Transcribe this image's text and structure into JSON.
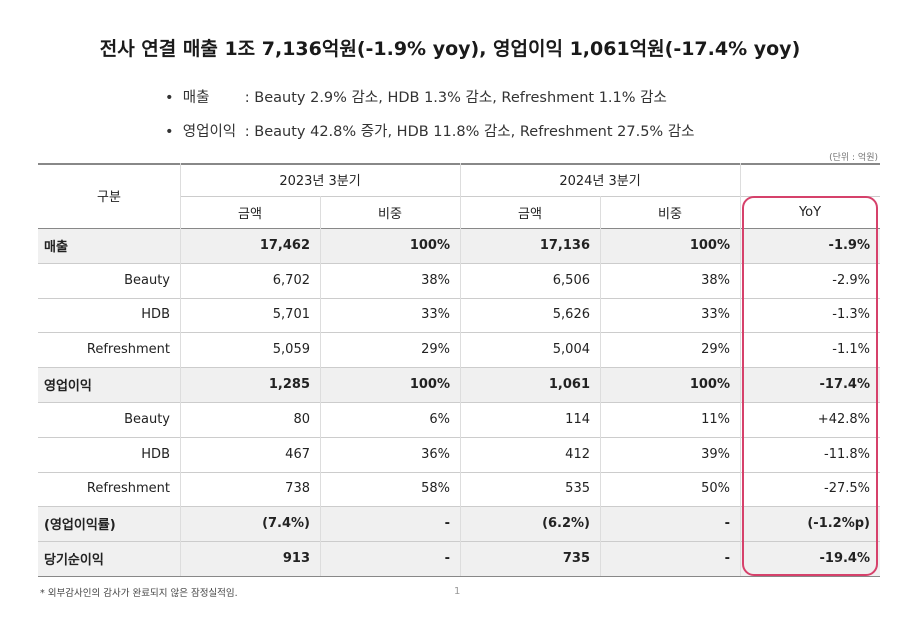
{
  "title": "전사 연결 매출 1조 7,136억원(-1.9% yoy), 영업이익 1,061억원(-17.4% yoy)",
  "bullets": [
    {
      "label": "매출",
      "text": ": Beauty 2.9% 감소, HDB 1.3% 감소, Refreshment 1.1% 감소"
    },
    {
      "label": "영업이익",
      "text": ": Beauty 42.8% 증가, HDB 11.8% 감소, Refreshment 27.5% 감소"
    }
  ],
  "unit": "(단위 : 억원)",
  "table": {
    "header": {
      "category": "구분",
      "periods": [
        "2023년 3분기",
        "2024년 3분기"
      ],
      "columns": [
        "금액",
        "비중",
        "금액",
        "비중",
        "YoY"
      ]
    },
    "rows": [
      [
        "매출",
        "17,462",
        "100%",
        "17,136",
        "100%",
        "-1.9%"
      ],
      [
        "Beauty",
        "6,702",
        "38%",
        "6,506",
        "38%",
        "-2.9%"
      ],
      [
        "HDB",
        "5,701",
        "33%",
        "5,626",
        "33%",
        "-1.3%"
      ],
      [
        "Refreshment",
        "5,059",
        "29%",
        "5,004",
        "29%",
        "-1.1%"
      ],
      [
        "영업이익",
        "1,285",
        "100%",
        "1,061",
        "100%",
        "-17.4%"
      ],
      [
        "Beauty",
        "80",
        "6%",
        "114",
        "11%",
        "+42.8%"
      ],
      [
        "HDB",
        "467",
        "36%",
        "412",
        "39%",
        "-11.8%"
      ],
      [
        "Refreshment",
        "738",
        "58%",
        "535",
        "50%",
        "-27.5%"
      ],
      [
        "(영업이익률)",
        "(7.4%)",
        "-",
        "(6.2%)",
        "-",
        "(-1.2%p)"
      ],
      [
        "당기순이익",
        "913",
        "-",
        "735",
        "-",
        "-19.4%"
      ]
    ]
  },
  "footnote": "* 외부감사인의 감사가 완료되지 않은 잠정실적임.",
  "page_number": "1"
}
